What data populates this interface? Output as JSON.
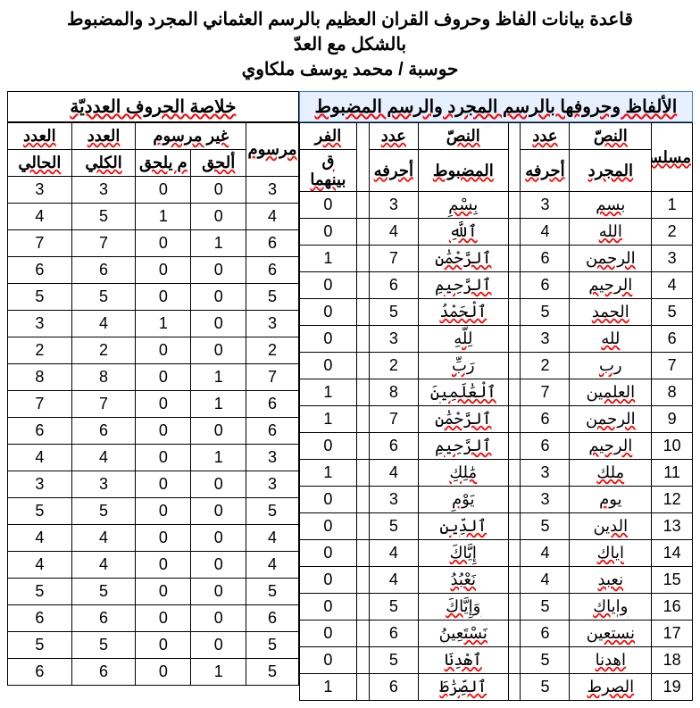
{
  "title": {
    "line1": "قاعدة بيانات الفاظ وحروف القران العظيم بالرسم العثماني المجرد والمضبوط",
    "line2": "بالشكل مع العدّ",
    "line3": "حوسبة / محمد يوسف ملكاوي"
  },
  "rightTable": {
    "title": "الألفاظ وحروفها بالرسم المجرد والرسم المضبوط",
    "headers": {
      "seq": "مسلسل",
      "plainText": "النصّ\nالمجرد",
      "plainCount": "عدد\nأحرفه",
      "diacText": "النصّ\nالمضبوط",
      "diacCount": "عدد\nأحرفه",
      "diff": "الفر\nق\nبينهما"
    },
    "rows": [
      {
        "seq": 1,
        "plain": "بسم",
        "pc": 3,
        "diac": "بِسْمِ",
        "dc": 3,
        "diff": 0
      },
      {
        "seq": 2,
        "plain": "الله",
        "pc": 4,
        "diac": "ٱللَّهِ",
        "dc": 4,
        "diff": 0
      },
      {
        "seq": 3,
        "plain": "الرحمن",
        "pc": 6,
        "diac": "ٱلرَّحْمَٰنِ",
        "dc": 7,
        "diff": 1
      },
      {
        "seq": 4,
        "plain": "الرحيم",
        "pc": 6,
        "diac": "ٱلرَّحِيمِ",
        "dc": 6,
        "diff": 0
      },
      {
        "seq": 5,
        "plain": "الحمد",
        "pc": 5,
        "diac": "ٱلْحَمْدُ",
        "dc": 5,
        "diff": 0
      },
      {
        "seq": 6,
        "plain": "لله",
        "pc": 3,
        "diac": "لِلَّهِ",
        "dc": 3,
        "diff": 0
      },
      {
        "seq": 7,
        "plain": "رب",
        "pc": 2,
        "diac": "رَبِّ",
        "dc": 2,
        "diff": 0
      },
      {
        "seq": 8,
        "plain": "العلمين",
        "pc": 7,
        "diac": "ٱلْعَٰلَمِينَ",
        "dc": 8,
        "diff": 1
      },
      {
        "seq": 9,
        "plain": "الرحمن",
        "pc": 6,
        "diac": "ٱلرَّحْمَٰنِ",
        "dc": 7,
        "diff": 1
      },
      {
        "seq": 10,
        "plain": "الرحيم",
        "pc": 6,
        "diac": "ٱلرَّحِيمِ",
        "dc": 6,
        "diff": 0
      },
      {
        "seq": 11,
        "plain": "ملك",
        "pc": 3,
        "diac": "مَٰلِكِ",
        "dc": 4,
        "diff": 1
      },
      {
        "seq": 12,
        "plain": "يوم",
        "pc": 3,
        "diac": "يَوْمِ",
        "dc": 3,
        "diff": 0
      },
      {
        "seq": 13,
        "plain": "الدين",
        "pc": 5,
        "diac": "ٱلدِّينِ",
        "dc": 5,
        "diff": 0
      },
      {
        "seq": 14,
        "plain": "اياك",
        "pc": 4,
        "diac": "إِيَّاكَ",
        "dc": 4,
        "diff": 0
      },
      {
        "seq": 15,
        "plain": "نعبد",
        "pc": 4,
        "diac": "نَعْبُدُ",
        "dc": 4,
        "diff": 0
      },
      {
        "seq": 16,
        "plain": "واياك",
        "pc": 5,
        "diac": "وَإِيَّاكَ",
        "dc": 5,
        "diff": 0
      },
      {
        "seq": 17,
        "plain": "نستعين",
        "pc": 6,
        "diac": "نَسْتَعِينُ",
        "dc": 6,
        "diff": 0
      },
      {
        "seq": 18,
        "plain": "اهدنا",
        "pc": 5,
        "diac": "ٱهْدِنَا",
        "dc": 5,
        "diff": 0
      },
      {
        "seq": 19,
        "plain": "الصرط",
        "pc": 5,
        "diac": "ٱلصِّرَٰطَ",
        "dc": 6,
        "diff": 1
      }
    ]
  },
  "leftTable": {
    "title": "خلاصة الحروف العدديّة",
    "headers": {
      "drawn": "مرسوم",
      "notDrawn": "غير مرسوم",
      "sub1": "ألحق",
      "sub2": "لم يلحق",
      "total": "العدد\nالكلي",
      "current": "العدد\nالحالي"
    },
    "rows": [
      {
        "drawn": 3,
        "s1": 0,
        "s2": 0,
        "total": 3,
        "cur": 3
      },
      {
        "drawn": 4,
        "s1": 0,
        "s2": 1,
        "total": 5,
        "cur": 4
      },
      {
        "drawn": 6,
        "s1": 1,
        "s2": 0,
        "total": 7,
        "cur": 7
      },
      {
        "drawn": 6,
        "s1": 0,
        "s2": 0,
        "total": 6,
        "cur": 6
      },
      {
        "drawn": 5,
        "s1": 0,
        "s2": 0,
        "total": 5,
        "cur": 5
      },
      {
        "drawn": 3,
        "s1": 0,
        "s2": 1,
        "total": 4,
        "cur": 3
      },
      {
        "drawn": 2,
        "s1": 0,
        "s2": 0,
        "total": 2,
        "cur": 2
      },
      {
        "drawn": 7,
        "s1": 1,
        "s2": 0,
        "total": 8,
        "cur": 8
      },
      {
        "drawn": 6,
        "s1": 1,
        "s2": 0,
        "total": 7,
        "cur": 7
      },
      {
        "drawn": 6,
        "s1": 0,
        "s2": 0,
        "total": 6,
        "cur": 6
      },
      {
        "drawn": 3,
        "s1": 1,
        "s2": 0,
        "total": 4,
        "cur": 4
      },
      {
        "drawn": 3,
        "s1": 0,
        "s2": 0,
        "total": 3,
        "cur": 3
      },
      {
        "drawn": 5,
        "s1": 0,
        "s2": 0,
        "total": 5,
        "cur": 5
      },
      {
        "drawn": 4,
        "s1": 0,
        "s2": 0,
        "total": 4,
        "cur": 4
      },
      {
        "drawn": 4,
        "s1": 0,
        "s2": 0,
        "total": 4,
        "cur": 4
      },
      {
        "drawn": 5,
        "s1": 0,
        "s2": 0,
        "total": 5,
        "cur": 5
      },
      {
        "drawn": 6,
        "s1": 0,
        "s2": 0,
        "total": 6,
        "cur": 6
      },
      {
        "drawn": 5,
        "s1": 0,
        "s2": 0,
        "total": 5,
        "cur": 5
      },
      {
        "drawn": 5,
        "s1": 1,
        "s2": 0,
        "total": 6,
        "cur": 6
      }
    ]
  },
  "colors": {
    "underline": "#ff0000",
    "border": "#000000",
    "highlightBg": "#e6f0ff",
    "highlightBorder": "#3a7bd5"
  }
}
